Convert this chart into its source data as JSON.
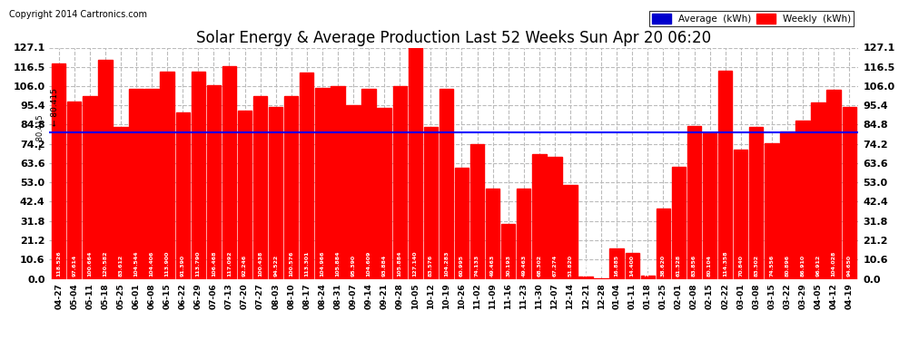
{
  "title": "Solar Energy & Average Production Last 52 Weeks Sun Apr 20 06:20",
  "copyright": "Copyright 2014 Cartronics.com",
  "average_value": 80.415,
  "bar_color": "#FF0000",
  "average_line_color": "#0000FF",
  "background_color": "#FFFFFF",
  "plot_bg_color": "#FFFFFF",
  "ylim": [
    0,
    127.1
  ],
  "yticks": [
    0.0,
    10.6,
    21.2,
    31.8,
    42.4,
    53.0,
    63.6,
    74.2,
    84.8,
    95.4,
    106.0,
    116.5,
    127.1
  ],
  "grid_color": "#BBBBBB",
  "categories": [
    "04-27",
    "05-04",
    "05-11",
    "05-18",
    "05-25",
    "06-01",
    "06-08",
    "06-15",
    "06-22",
    "06-29",
    "07-06",
    "07-13",
    "07-20",
    "07-27",
    "08-03",
    "08-10",
    "08-17",
    "08-24",
    "08-31",
    "09-07",
    "09-14",
    "09-21",
    "09-28",
    "10-05",
    "10-12",
    "10-19",
    "10-26",
    "11-02",
    "11-09",
    "11-16",
    "11-23",
    "11-30",
    "12-07",
    "12-14",
    "12-21",
    "12-28",
    "01-04",
    "01-11",
    "01-18",
    "01-25",
    "02-01",
    "02-08",
    "02-15",
    "02-22",
    "03-01",
    "03-08",
    "03-15",
    "03-22",
    "03-29",
    "04-05",
    "04-12",
    "04-19"
  ],
  "values": [
    118.526,
    97.614,
    100.664,
    120.582,
    83.612,
    104.544,
    104.406,
    113.9,
    91.39,
    113.79,
    106.468,
    117.092,
    92.246,
    100.438,
    94.522,
    100.576,
    113.301,
    104.966,
    105.884,
    95.39,
    104.609,
    93.884,
    105.884,
    127.14,
    83.576,
    104.283,
    60.995,
    74.133,
    49.463,
    30.193,
    49.463,
    68.302,
    67.274,
    51.82,
    1.053,
    0.492,
    16.885,
    14.4,
    1.752,
    38.62,
    61.328,
    83.856,
    80.104,
    114.358,
    70.84,
    83.302,
    74.556,
    80.896,
    86.91,
    96.912,
    104.028,
    94.65
  ],
  "legend_avg_color": "#0000CD",
  "legend_weekly_color": "#FF0000",
  "legend_avg_label": "Average  (kWh)",
  "legend_weekly_label": "Weekly  (kWh)"
}
